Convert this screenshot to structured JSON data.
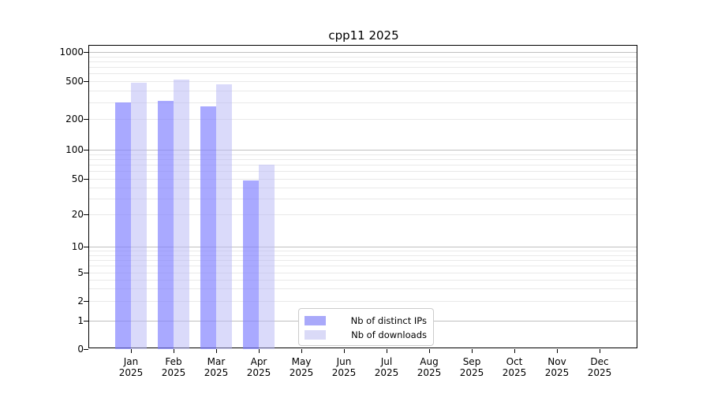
{
  "chart_data": {
    "type": "bar",
    "title": "cpp11 2025",
    "x_year": "2025",
    "categories": [
      "Jan",
      "Feb",
      "Mar",
      "Apr",
      "May",
      "Jun",
      "Jul",
      "Aug",
      "Sep",
      "Oct",
      "Nov",
      "Dec"
    ],
    "series": [
      {
        "name": "Nb of distinct IPs",
        "values": [
          300,
          310,
          270,
          48,
          null,
          null,
          null,
          null,
          null,
          null,
          null,
          null
        ],
        "bar_color": "rgba(128,128,255,0.68)",
        "legend_color": "#a9a9fa"
      },
      {
        "name": "Nb of downloads",
        "values": [
          480,
          520,
          460,
          70,
          null,
          null,
          null,
          null,
          null,
          null,
          null,
          null
        ],
        "bar_color": "rgba(185,185,245,0.52)",
        "legend_color": "#dadaf7"
      }
    ],
    "yticks": [
      0,
      1,
      2,
      5,
      10,
      20,
      50,
      100,
      200,
      500,
      1000
    ],
    "ylim": [
      0,
      1000
    ],
    "yscale": "symlog",
    "grid": true,
    "legend_position": "lower center",
    "colors": {
      "grid_major": "#c0c0c0",
      "grid_minor": "#e9e9e9",
      "spine": "#000000",
      "text": "#000000",
      "background": "#ffffff"
    }
  }
}
